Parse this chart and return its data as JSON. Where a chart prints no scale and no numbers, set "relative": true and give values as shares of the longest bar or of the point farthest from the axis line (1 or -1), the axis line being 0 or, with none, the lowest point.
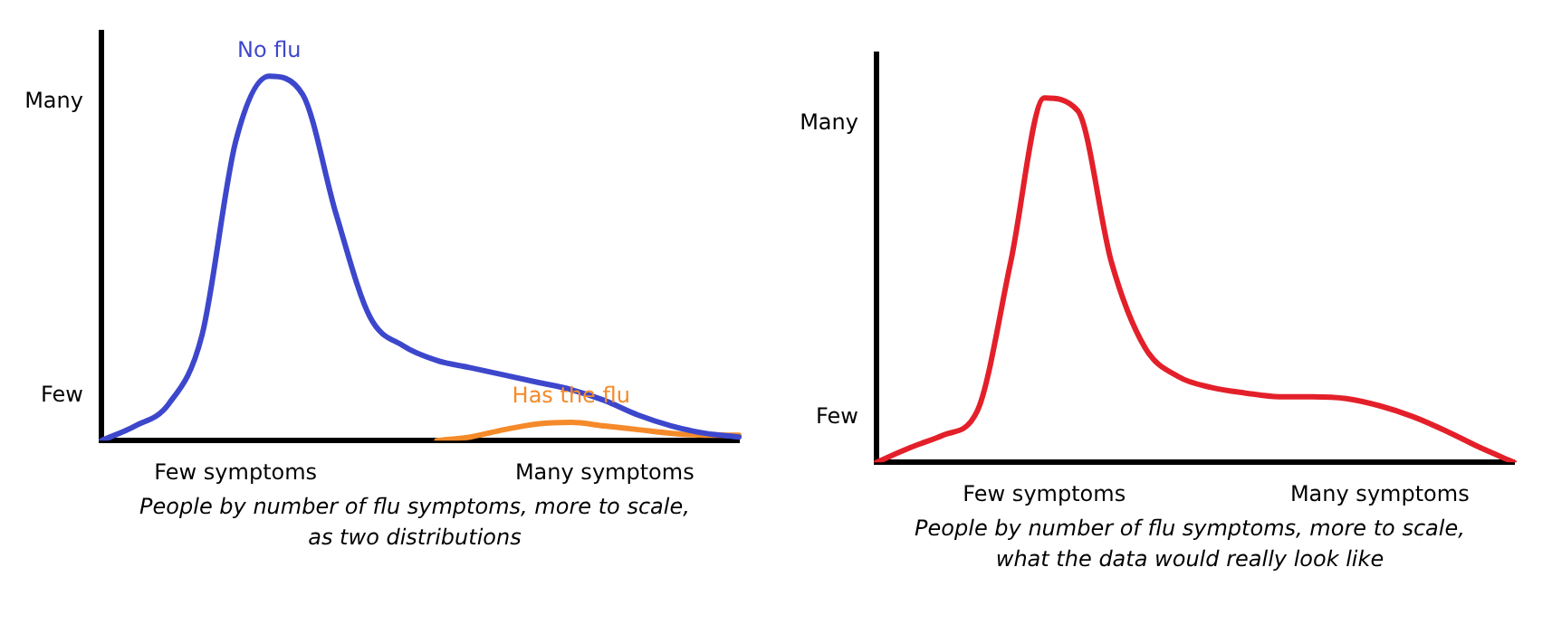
{
  "chart_data": [
    {
      "type": "line",
      "relative": true,
      "categories": [
        null,
        null,
        null,
        null,
        "Few symptoms",
        null,
        null,
        null,
        null,
        null,
        null,
        null,
        null,
        null,
        null,
        "Many symptoms",
        null,
        null,
        null,
        null
      ],
      "series": [
        {
          "name": "No flu",
          "color": "#3d47cc",
          "values": [
            0,
            0.04,
            0.1,
            0.29,
            0.82,
            1,
            0.95,
            0.62,
            0.34,
            0.26,
            0.22,
            0.2,
            0.18,
            0.16,
            0.14,
            0.11,
            0.07,
            0.04,
            0.02,
            0.01
          ]
        },
        {
          "name": "Has the flu",
          "color": "#f58a2a",
          "values": [
            null,
            null,
            null,
            null,
            null,
            null,
            null,
            null,
            null,
            null,
            0,
            0.01,
            0.03,
            0.046,
            0.05,
            0.04,
            0.03,
            0.02,
            0.015,
            0.015
          ]
        }
      ],
      "annotations": [
        "Many",
        "Few",
        "People by number of flu symptoms, more to scale,\nas two distributions"
      ]
    },
    {
      "type": "line",
      "relative": true,
      "categories": [
        null,
        null,
        null,
        null,
        null,
        "Few symptoms",
        null,
        null,
        null,
        null,
        null,
        null,
        null,
        null,
        null,
        "Many symptoms",
        null,
        null,
        null,
        null
      ],
      "series": [
        {
          "color": "#e3202a",
          "values": [
            0,
            0.04,
            0.075,
            0.14,
            0.55,
            1,
            0.965,
            0.55,
            0.315,
            0.235,
            0.205,
            0.19,
            0.18,
            0.18,
            0.175,
            0.155,
            0.125,
            0.085,
            0.04,
            0
          ]
        }
      ],
      "annotations": [
        "Many",
        "Few",
        "People by number of flu symptoms, more to scale,\nwhat the data would really look like"
      ]
    }
  ]
}
